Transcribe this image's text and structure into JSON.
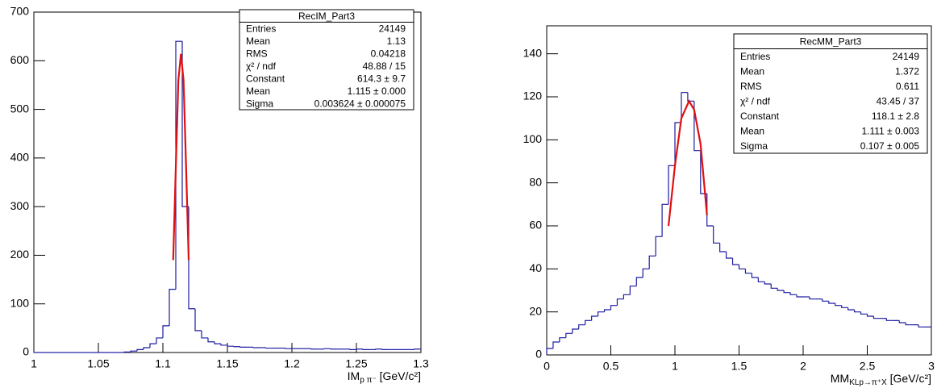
{
  "chart_data": [
    {
      "type": "histogram",
      "title": "RecIM_Part3",
      "stats": [
        {
          "label": "Entries",
          "value": "24149"
        },
        {
          "label": "Mean",
          "value": "1.13"
        },
        {
          "label": "RMS",
          "value": "0.04218"
        },
        {
          "label": "χ² / ndf",
          "value": "48.88 / 15"
        },
        {
          "label": "Constant",
          "value": "614.3 ± 9.7"
        },
        {
          "label": "Mean",
          "value": "1.115 ± 0.000"
        },
        {
          "label": "Sigma",
          "value": "0.003624 ± 0.000075"
        }
      ],
      "xlabel": {
        "main": "IM",
        "sub": "p π⁻",
        "unit": " [GeV/c²]"
      },
      "color": "#1c1ca0",
      "bins": [
        1,
        1.005,
        1.01,
        1.015,
        1.02,
        1.025,
        1.03,
        1.035,
        1.04,
        1.045,
        1.05,
        1.055,
        1.06,
        1.065,
        1.07,
        1.075,
        1.08,
        1.085,
        1.09,
        1.095,
        1.1,
        1.105,
        1.11,
        1.115,
        1.12,
        1.125,
        1.13,
        1.135,
        1.14,
        1.145,
        1.15,
        1.155,
        1.16,
        1.165,
        1.17,
        1.175,
        1.18,
        1.185,
        1.19,
        1.195,
        1.2,
        1.205,
        1.21,
        1.215,
        1.22,
        1.225,
        1.23,
        1.235,
        1.24,
        1.245,
        1.25,
        1.255,
        1.26,
        1.265,
        1.27,
        1.275,
        1.28,
        1.285,
        1.29,
        1.295,
        1.3
      ],
      "values": [
        0,
        0,
        0,
        0,
        0,
        0,
        0,
        0,
        0,
        0,
        0,
        0,
        0,
        0,
        1,
        3,
        6,
        10,
        18,
        30,
        55,
        130,
        640,
        300,
        90,
        45,
        30,
        22,
        18,
        15,
        13,
        12,
        11,
        11,
        10,
        10,
        9,
        9,
        9,
        8,
        8,
        8,
        8,
        7,
        7,
        8,
        7,
        7,
        7,
        6,
        7,
        6,
        6,
        7,
        6,
        6,
        6,
        6,
        6,
        7
      ],
      "fit": {
        "color": "#e01010",
        "x": [
          1.108,
          1.11,
          1.112,
          1.114,
          1.116,
          1.118,
          1.12
        ],
        "values": [
          190,
          380,
          560,
          614,
          560,
          380,
          190
        ]
      },
      "xlim": [
        1,
        1.3
      ],
      "ylim": [
        0,
        700
      ],
      "xticks": [
        1,
        1.05,
        1.1,
        1.15,
        1.2,
        1.25,
        1.3
      ],
      "yticks": [
        0,
        100,
        200,
        300,
        400,
        500,
        600,
        700
      ]
    },
    {
      "type": "histogram",
      "title": "RecMM_Part3",
      "stats": [
        {
          "label": "Entries",
          "value": "24149"
        },
        {
          "label": "Mean",
          "value": "1.372"
        },
        {
          "label": "RMS",
          "value": "0.611"
        },
        {
          "label": "χ² / ndf",
          "value": "43.45 / 37"
        },
        {
          "label": "Constant",
          "value": "118.1 ± 2.8"
        },
        {
          "label": "Mean",
          "value": "1.111 ± 0.003"
        },
        {
          "label": "Sigma",
          "value": "0.107 ± 0.005"
        }
      ],
      "xlabel": {
        "main": "MM",
        "sub": "KLp→π⁺X",
        "unit": " [GeV/c²]"
      },
      "color": "#1c1ca0",
      "bins": [
        0,
        0.05,
        0.1,
        0.15,
        0.2,
        0.25,
        0.3,
        0.35,
        0.4,
        0.45,
        0.5,
        0.55,
        0.6,
        0.65,
        0.7,
        0.75,
        0.8,
        0.85,
        0.9,
        0.95,
        1,
        1.05,
        1.1,
        1.15,
        1.2,
        1.25,
        1.3,
        1.35,
        1.4,
        1.45,
        1.5,
        1.55,
        1.6,
        1.65,
        1.7,
        1.75,
        1.8,
        1.85,
        1.9,
        1.95,
        2,
        2.05,
        2.1,
        2.15,
        2.2,
        2.25,
        2.3,
        2.35,
        2.4,
        2.45,
        2.5,
        2.55,
        2.6,
        2.65,
        2.7,
        2.75,
        2.8,
        2.85,
        2.9,
        2.95,
        3
      ],
      "values": [
        3,
        6,
        8,
        10,
        12,
        14,
        16,
        18,
        20,
        21,
        23,
        26,
        28,
        32,
        36,
        40,
        46,
        55,
        70,
        88,
        108,
        122,
        118,
        95,
        75,
        60,
        52,
        48,
        45,
        42,
        40,
        38,
        36,
        34,
        33,
        31,
        30,
        29,
        28,
        27,
        27,
        26,
        26,
        25,
        24,
        23,
        22,
        21,
        20,
        19,
        18,
        17,
        17,
        16,
        16,
        15,
        14,
        14,
        13,
        13
      ],
      "fit": {
        "color": "#e01010",
        "x": [
          0.95,
          1,
          1.05,
          1.11,
          1.15,
          1.2,
          1.25
        ],
        "values": [
          60,
          88,
          110,
          118,
          114,
          98,
          65
        ]
      },
      "xlim": [
        0,
        3
      ],
      "ylim": [
        0,
        153
      ],
      "xticks": [
        0,
        0.5,
        1,
        1.5,
        2,
        2.5,
        3
      ],
      "yticks": [
        0,
        20,
        40,
        60,
        80,
        100,
        120,
        140
      ]
    }
  ]
}
